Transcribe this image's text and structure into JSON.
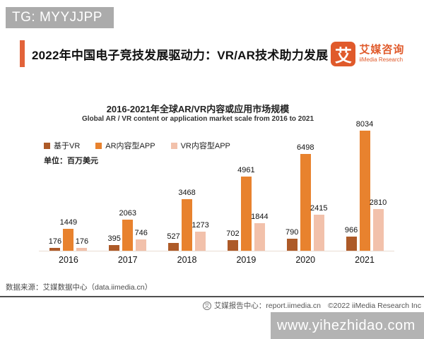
{
  "badge": {
    "text": "TG: MYYJJPP"
  },
  "header": {
    "title": "2022年中国电子竞技发展驱动力：VR/AR技术助力发展",
    "logo": {
      "mark": "艾",
      "name_cn": "艾媒咨询",
      "name_en": "iiMedia Research"
    }
  },
  "chart_data": {
    "type": "bar",
    "title": "2016-2021年全球AR/VR内容或应用市场规模",
    "subtitle": "Global AR / VR content or application market scale from 2016 to 2021",
    "unit_label": "单位：百万美元",
    "categories": [
      "2016",
      "2017",
      "2018",
      "2019",
      "2020",
      "2021"
    ],
    "series": [
      {
        "name": "基于VR",
        "color": "#ad5a28",
        "values": [
          176,
          395,
          527,
          702,
          790,
          966
        ]
      },
      {
        "name": "AR内容型APP",
        "color": "#e8822e",
        "values": [
          1449,
          2063,
          3468,
          4961,
          6498,
          8034
        ]
      },
      {
        "name": "VR内容型APP",
        "color": "#f2c1ab",
        "values": [
          176,
          746,
          1273,
          1844,
          2415,
          2810
        ]
      }
    ],
    "ylim": [
      0,
      8034
    ],
    "legend_position": "top-left",
    "grid": false,
    "value_labels": true
  },
  "footer": {
    "source": "数据来源：艾媒数据中心（data.iimedia.cn）",
    "report_center": "艾媒报告中心：report.iimedia.cn",
    "copyright": "©2022  iiMedia Research  Inc",
    "logo_glyph": "艾"
  },
  "watermark": {
    "text": "www.yihezhidao.com"
  },
  "colors": {
    "accent": "#e2633a",
    "brand_orange": "#e05a2b",
    "badge_gray": "#ababab",
    "watermark_gray": "#b3b3b3"
  }
}
